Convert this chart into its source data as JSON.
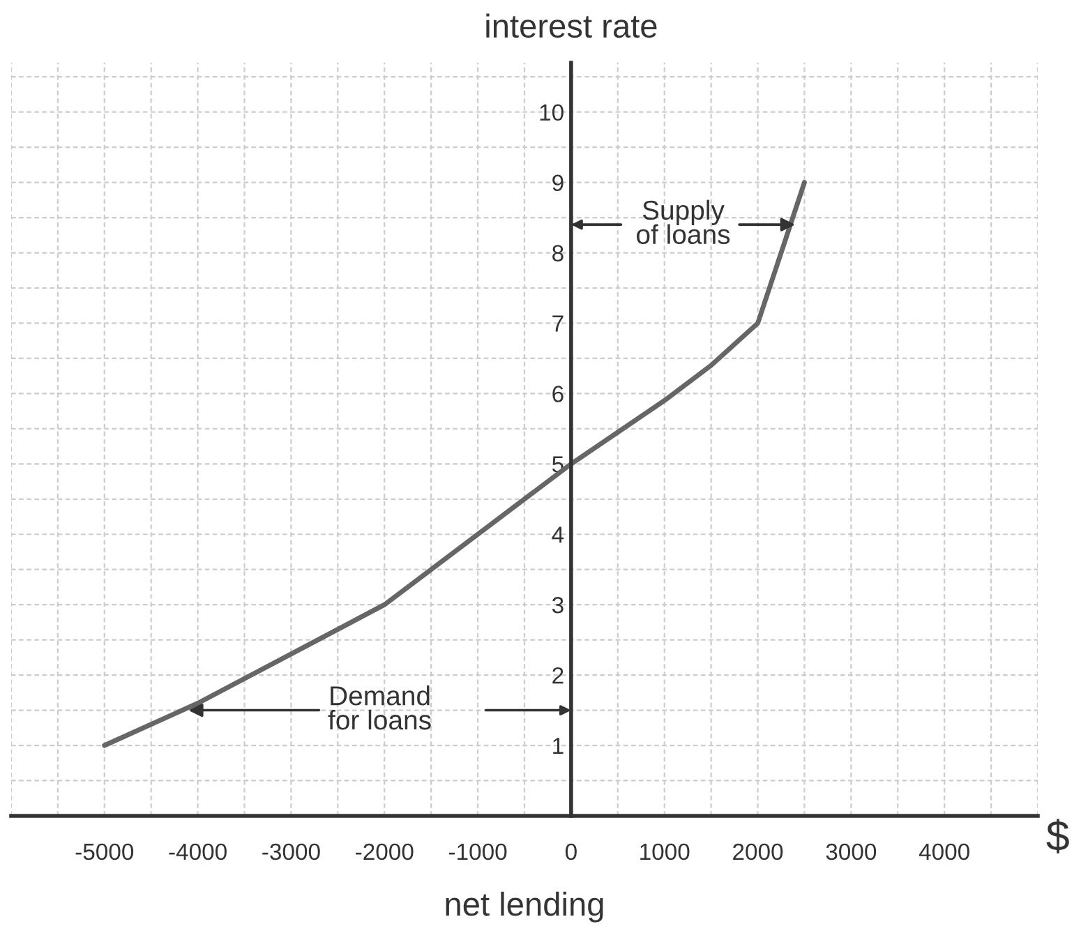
{
  "chart_data": {
    "type": "line",
    "xlabel": "net lending",
    "ylabel": "interest rate",
    "x": [
      -5000,
      -4000,
      -3000,
      -2000,
      -1000,
      0,
      1000,
      1500,
      2000,
      2500
    ],
    "series": [
      {
        "color": "#666666",
        "values": [
          1,
          1.6,
          2.3,
          3,
          4,
          5,
          5.9,
          6.4,
          7,
          9
        ]
      }
    ],
    "xlim": [
      -6000,
      5000
    ],
    "ylim": [
      0,
      10.7
    ],
    "xticks": [
      -5000,
      -4000,
      -3000,
      -2000,
      -1000,
      0,
      1000,
      2000,
      3000,
      4000
    ],
    "yticks": [
      1,
      2,
      3,
      4,
      5,
      6,
      7,
      8,
      9,
      10
    ],
    "grid": true,
    "marker": "none",
    "line_style": "solid",
    "annotations": [
      "$",
      {
        "text": "Demand\nfor loans",
        "x": -4100,
        "y": 1.5
      },
      {
        "text": "Supply\nof loans",
        "x": 2400,
        "y": 8.4
      }
    ]
  }
}
